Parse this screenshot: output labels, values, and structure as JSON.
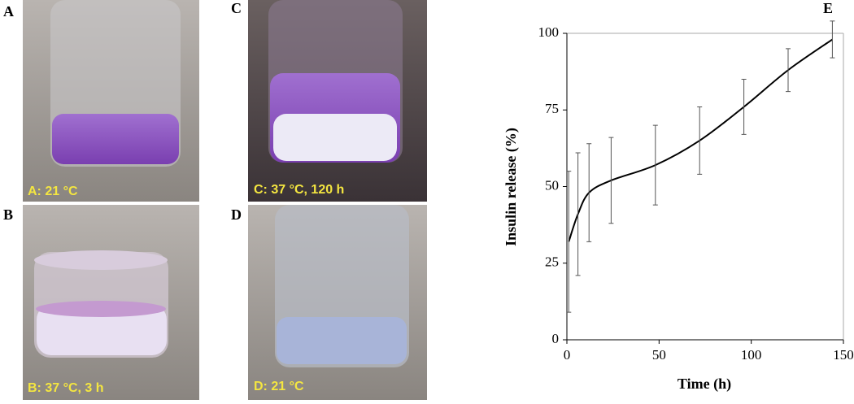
{
  "panels": [
    {
      "label": "A",
      "caption": "A: 21 °C"
    },
    {
      "label": "B",
      "caption": "B: 37 °C, 3 h"
    },
    {
      "label": "C",
      "caption": "C: 37 °C, 120 h"
    },
    {
      "label": "D",
      "caption": "D: 21 °C"
    }
  ],
  "chart_data": {
    "type": "line",
    "panel_label": "E",
    "x_label": "Time (h)",
    "y_label": "Insulin release (%)",
    "x": [
      1,
      6,
      12,
      24,
      48,
      72,
      96,
      120,
      144
    ],
    "series": [
      {
        "color": "#000000",
        "values": [
          32,
          41,
          48,
          52,
          57,
          65,
          76,
          88,
          98
        ],
        "errors": [
          23,
          20,
          16,
          14,
          13,
          11,
          9,
          7,
          6
        ]
      }
    ],
    "xlim": [
      0,
      150
    ],
    "xticks": [
      0,
      50,
      100,
      150
    ],
    "ylim": [
      0,
      100
    ],
    "yticks": [
      0,
      25,
      50,
      75,
      100
    ]
  }
}
